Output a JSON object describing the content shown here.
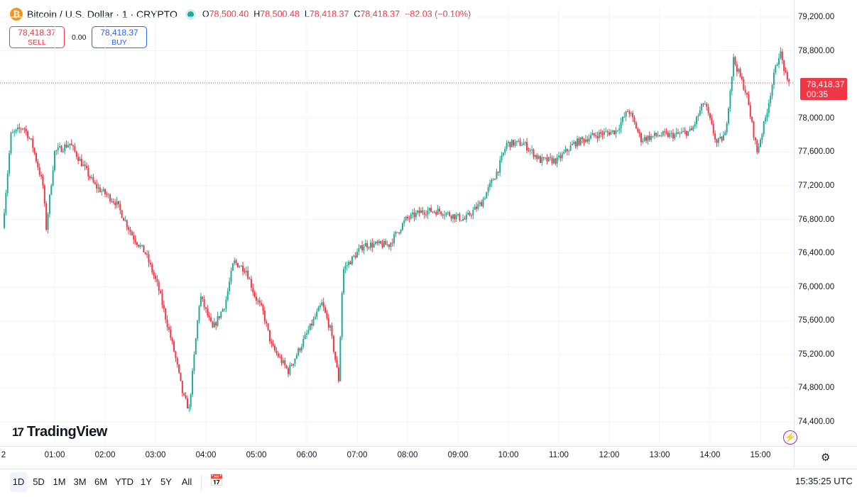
{
  "header": {
    "symbol_icon": "bitcoin-icon",
    "title": "Bitcoin / U.S. Dollar · 1 · CRYPTO",
    "ohlc": [
      {
        "key": "O",
        "value": "78,500.40"
      },
      {
        "key": "H",
        "value": "78,500.48"
      },
      {
        "key": "L",
        "value": "78,418.37"
      },
      {
        "key": "C",
        "value": "78,418.37"
      },
      {
        "key": "",
        "value": "−82.03 (−0.10%)"
      }
    ]
  },
  "trade": {
    "sell_price": "78,418.37",
    "sell_label": "SELL",
    "spread": "0.00",
    "buy_price": "78,418.37",
    "buy_label": "BUY"
  },
  "last_price": {
    "price": "78,418.37",
    "countdown": "00:35"
  },
  "logo_text": "TradingView",
  "time_ranges": [
    "1D",
    "5D",
    "1M",
    "3M",
    "6M",
    "YTD",
    "1Y",
    "5Y",
    "All"
  ],
  "active_range": "1D",
  "clock": "15:35:25 UTC",
  "colors": {
    "up": "#22ab94",
    "down": "#f23645",
    "grid": "#f0f3fa",
    "accent": "#2962ff"
  },
  "chart_data": {
    "type": "candlestick",
    "interval": "1 minute",
    "y_ticks": [
      79200,
      78800,
      78000,
      77600,
      77200,
      76800,
      76400,
      76000,
      75600,
      75200,
      74800,
      74400
    ],
    "y_tick_labels": [
      "79,200.00",
      "78,800.00",
      "78,000.00",
      "77,600.00",
      "77,200.00",
      "76,800.00",
      "76,400.00",
      "76,000.00",
      "75,600.00",
      "75,200.00",
      "74,800.00",
      "74,400.00"
    ],
    "ylim": [
      74100,
      79400
    ],
    "x_ticks": [
      "2",
      "01:00",
      "02:00",
      "03:00",
      "04:00",
      "05:00",
      "06:00",
      "07:00",
      "08:00",
      "09:00",
      "10:00",
      "11:00",
      "12:00",
      "13:00",
      "14:00",
      "15:00"
    ],
    "last_price": 78418.37,
    "path_anchors": [
      {
        "t": "00:00",
        "p": 76700
      },
      {
        "t": "00:10",
        "p": 77800
      },
      {
        "t": "00:25",
        "p": 77900
      },
      {
        "t": "00:35",
        "p": 77700
      },
      {
        "t": "00:48",
        "p": 77200
      },
      {
        "t": "00:52",
        "p": 76700
      },
      {
        "t": "01:02",
        "p": 77600
      },
      {
        "t": "01:20",
        "p": 77700
      },
      {
        "t": "01:50",
        "p": 77200
      },
      {
        "t": "02:15",
        "p": 77000
      },
      {
        "t": "02:35",
        "p": 76600
      },
      {
        "t": "02:50",
        "p": 76400
      },
      {
        "t": "03:05",
        "p": 76000
      },
      {
        "t": "03:25",
        "p": 75200
      },
      {
        "t": "03:35",
        "p": 74700
      },
      {
        "t": "03:42",
        "p": 74550
      },
      {
        "t": "03:55",
        "p": 75900
      },
      {
        "t": "04:10",
        "p": 75500
      },
      {
        "t": "04:25",
        "p": 75800
      },
      {
        "t": "04:35",
        "p": 76300
      },
      {
        "t": "04:50",
        "p": 76200
      },
      {
        "t": "05:00",
        "p": 75900
      },
      {
        "t": "05:10",
        "p": 75700
      },
      {
        "t": "05:20",
        "p": 75300
      },
      {
        "t": "05:40",
        "p": 75000
      },
      {
        "t": "06:00",
        "p": 75400
      },
      {
        "t": "06:20",
        "p": 75800
      },
      {
        "t": "06:30",
        "p": 75500
      },
      {
        "t": "06:40",
        "p": 74900
      },
      {
        "t": "06:45",
        "p": 76200
      },
      {
        "t": "07:10",
        "p": 76500
      },
      {
        "t": "07:40",
        "p": 76500
      },
      {
        "t": "08:00",
        "p": 76800
      },
      {
        "t": "08:20",
        "p": 76900
      },
      {
        "t": "08:40",
        "p": 76900
      },
      {
        "t": "09:10",
        "p": 76800
      },
      {
        "t": "09:30",
        "p": 77000
      },
      {
        "t": "09:50",
        "p": 77400
      },
      {
        "t": "10:00",
        "p": 77700
      },
      {
        "t": "10:20",
        "p": 77700
      },
      {
        "t": "10:40",
        "p": 77500
      },
      {
        "t": "11:00",
        "p": 77500
      },
      {
        "t": "11:20",
        "p": 77700
      },
      {
        "t": "11:45",
        "p": 77800
      },
      {
        "t": "12:10",
        "p": 77850
      },
      {
        "t": "12:25",
        "p": 78100
      },
      {
        "t": "12:40",
        "p": 77750
      },
      {
        "t": "13:00",
        "p": 77800
      },
      {
        "t": "13:20",
        "p": 77800
      },
      {
        "t": "13:40",
        "p": 77850
      },
      {
        "t": "13:55",
        "p": 78200
      },
      {
        "t": "14:10",
        "p": 77700
      },
      {
        "t": "14:20",
        "p": 77800
      },
      {
        "t": "14:30",
        "p": 78700
      },
      {
        "t": "14:45",
        "p": 78300
      },
      {
        "t": "14:58",
        "p": 77600
      },
      {
        "t": "15:08",
        "p": 78000
      },
      {
        "t": "15:18",
        "p": 78500
      },
      {
        "t": "15:25",
        "p": 78800
      },
      {
        "t": "15:34",
        "p": 78418.37
      }
    ]
  }
}
